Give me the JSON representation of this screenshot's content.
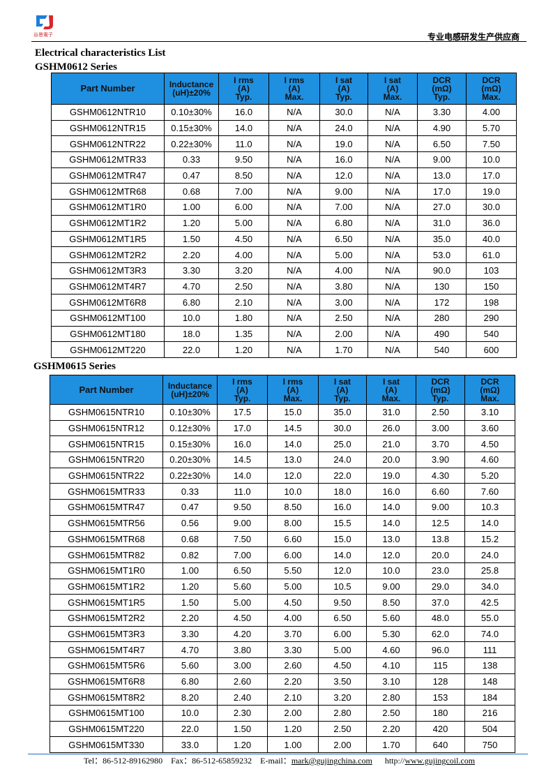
{
  "header": {
    "logo_text": "谷景電子",
    "slogan": "专业电感研发生产供应商"
  },
  "title": "Electrical characteristics List",
  "tables": [
    {
      "title": "GSHM0612 Series",
      "columns": [
        [
          "Part Number"
        ],
        [
          "Inductance",
          "(uH)±20%"
        ],
        [
          "I rms",
          "(A)",
          "Typ."
        ],
        [
          "I rms",
          "(A)",
          "Max."
        ],
        [
          "I sat",
          "(A)",
          "Typ."
        ],
        [
          "I sat",
          "(A)",
          "Max."
        ],
        [
          "DCR",
          "(mΩ)",
          "Typ."
        ],
        [
          "DCR",
          "(mΩ)",
          "Max."
        ]
      ],
      "rows": [
        [
          "GSHM0612NTR10",
          "0.10±30%",
          "16.0",
          "N/A",
          "30.0",
          "N/A",
          "3.30",
          "4.00"
        ],
        [
          "GSHM0612NTR15",
          "0.15±30%",
          "14.0",
          "N/A",
          "24.0",
          "N/A",
          "4.90",
          "5.70"
        ],
        [
          "GSHM0612NTR22",
          "0.22±30%",
          "11.0",
          "N/A",
          "19.0",
          "N/A",
          "6.50",
          "7.50"
        ],
        [
          "GSHM0612MTR33",
          "0.33",
          "9.50",
          "N/A",
          "16.0",
          "N/A",
          "9.00",
          "10.0"
        ],
        [
          "GSHM0612MTR47",
          "0.47",
          "8.50",
          "N/A",
          "12.0",
          "N/A",
          "13.0",
          "17.0"
        ],
        [
          "GSHM0612MTR68",
          "0.68",
          "7.00",
          "N/A",
          "9.00",
          "N/A",
          "17.0",
          "19.0"
        ],
        [
          "GSHM0612MT1R0",
          "1.00",
          "6.00",
          "N/A",
          "7.00",
          "N/A",
          "27.0",
          "30.0"
        ],
        [
          "GSHM0612MT1R2",
          "1.20",
          "5.00",
          "N/A",
          "6.80",
          "N/A",
          "31.0",
          "36.0"
        ],
        [
          "GSHM0612MT1R5",
          "1.50",
          "4.50",
          "N/A",
          "6.50",
          "N/A",
          "35.0",
          "40.0"
        ],
        [
          "GSHM0612MT2R2",
          "2.20",
          "4.00",
          "N/A",
          "5.00",
          "N/A",
          "53.0",
          "61.0"
        ],
        [
          "GSHM0612MT3R3",
          "3.30",
          "3.20",
          "N/A",
          "4.00",
          "N/A",
          "90.0",
          "103"
        ],
        [
          "GSHM0612MT4R7",
          "4.70",
          "2.50",
          "N/A",
          "3.80",
          "N/A",
          "130",
          "150"
        ],
        [
          "GSHM0612MT6R8",
          "6.80",
          "2.10",
          "N/A",
          "3.00",
          "N/A",
          "172",
          "198"
        ],
        [
          "GSHM0612MT100",
          "10.0",
          "1.80",
          "N/A",
          "2.50",
          "N/A",
          "280",
          "290"
        ],
        [
          "GSHM0612MT180",
          "18.0",
          "1.35",
          "N/A",
          "2.00",
          "N/A",
          "490",
          "540"
        ],
        [
          "GSHM0612MT220",
          "22.0",
          "1.20",
          "N/A",
          "1.70",
          "N/A",
          "540",
          "600"
        ]
      ]
    },
    {
      "title": "GSHM0615 Series",
      "columns": [
        [
          "Part Number"
        ],
        [
          "Inductance",
          "(uH)±20%"
        ],
        [
          "I rms",
          "(A)",
          "Typ."
        ],
        [
          "I rms",
          "(A)",
          "Max."
        ],
        [
          "I sat",
          "(A)",
          "Typ."
        ],
        [
          "I sat",
          "(A)",
          "Max."
        ],
        [
          "DCR",
          "(mΩ)",
          "Typ."
        ],
        [
          "DCR",
          "(mΩ)",
          "Max."
        ]
      ],
      "rows": [
        [
          "GSHM0615NTR10",
          "0.10±30%",
          "17.5",
          "15.0",
          "35.0",
          "31.0",
          "2.50",
          "3.10"
        ],
        [
          "GSHM0615NTR12",
          "0.12±30%",
          "17.0",
          "14.5",
          "30.0",
          "26.0",
          "3.00",
          "3.60"
        ],
        [
          "GSHM0615NTR15",
          "0.15±30%",
          "16.0",
          "14.0",
          "25.0",
          "21.0",
          "3.70",
          "4.50"
        ],
        [
          "GSHM0615NTR20",
          "0.20±30%",
          "14.5",
          "13.0",
          "24.0",
          "20.0",
          "3.90",
          "4.60"
        ],
        [
          "GSHM0615NTR22",
          "0.22±30%",
          "14.0",
          "12.0",
          "22.0",
          "19.0",
          "4.30",
          "5.20"
        ],
        [
          "GSHM0615MTR33",
          "0.33",
          "11.0",
          "10.0",
          "18.0",
          "16.0",
          "6.60",
          "7.60"
        ],
        [
          "GSHM0615MTR47",
          "0.47",
          "9.50",
          "8.50",
          "16.0",
          "14.0",
          "9.00",
          "10.3"
        ],
        [
          "GSHM0615MTR56",
          "0.56",
          "9.00",
          "8.00",
          "15.5",
          "14.0",
          "12.5",
          "14.0"
        ],
        [
          "GSHM0615MTR68",
          "0.68",
          "7.50",
          "6.60",
          "15.0",
          "13.0",
          "13.8",
          "15.2"
        ],
        [
          "GSHM0615MTR82",
          "0.82",
          "7.00",
          "6.00",
          "14.0",
          "12.0",
          "20.0",
          "24.0"
        ],
        [
          "GSHM0615MT1R0",
          "1.00",
          "6.50",
          "5.50",
          "12.0",
          "10.0",
          "23.0",
          "25.8"
        ],
        [
          "GSHM0615MT1R2",
          "1.20",
          "5.60",
          "5.00",
          "10.5",
          "9.00",
          "29.0",
          "34.0"
        ],
        [
          "GSHM0615MT1R5",
          "1.50",
          "5.00",
          "4.50",
          "9.50",
          "8.50",
          "37.0",
          "42.5"
        ],
        [
          "GSHM0615MT2R2",
          "2.20",
          "4.50",
          "4.00",
          "6.50",
          "5.60",
          "48.0",
          "55.0"
        ],
        [
          "GSHM0615MT3R3",
          "3.30",
          "4.20",
          "3.70",
          "6.00",
          "5.30",
          "62.0",
          "74.0"
        ],
        [
          "GSHM0615MT4R7",
          "4.70",
          "3.80",
          "3.30",
          "5.00",
          "4.60",
          "96.0",
          "111"
        ],
        [
          "GSHM0615MT5R6",
          "5.60",
          "3.00",
          "2.60",
          "4.50",
          "4.10",
          "115",
          "138"
        ],
        [
          "GSHM0615MT6R8",
          "6.80",
          "2.60",
          "2.20",
          "3.50",
          "3.10",
          "128",
          "148"
        ],
        [
          "GSHM0615MT8R2",
          "8.20",
          "2.40",
          "2.10",
          "3.20",
          "2.80",
          "153",
          "184"
        ],
        [
          "GSHM0615MT100",
          "10.0",
          "2.30",
          "2.00",
          "2.80",
          "2.50",
          "180",
          "216"
        ],
        [
          "GSHM0615MT220",
          "22.0",
          "1.50",
          "1.20",
          "2.50",
          "2.20",
          "420",
          "504"
        ],
        [
          "GSHM0615MT330",
          "33.0",
          "1.20",
          "1.00",
          "2.00",
          "1.70",
          "640",
          "750"
        ]
      ]
    }
  ],
  "footer": {
    "tel": "Tel：86-512-89162980",
    "fax": "Fax：86-512-65859232",
    "email_label": "E-mail：",
    "email": "mark@gujingchina.com",
    "web_label": "http://",
    "web": "www.gujingcoil.com"
  }
}
